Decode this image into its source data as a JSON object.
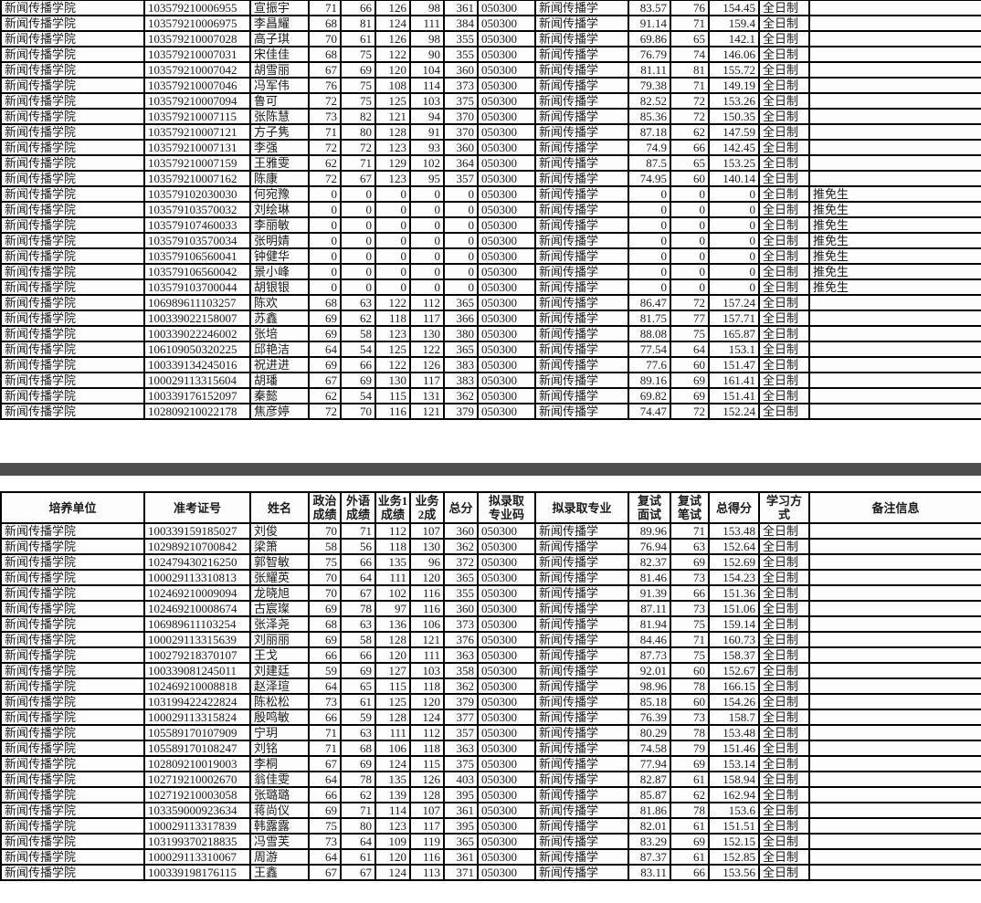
{
  "page": {
    "background_color": "#ffffff",
    "divider_color": "#4d4d4d",
    "table_border_color": "#000000"
  },
  "columns": [
    {
      "key": "unit",
      "label": "培养单位",
      "align": "left",
      "width": 157
    },
    {
      "key": "exam_no",
      "label": "准考证号",
      "align": "left",
      "width": 116
    },
    {
      "key": "name",
      "label": "姓名",
      "align": "left",
      "width": 64
    },
    {
      "key": "politics",
      "label": "政治\n成绩",
      "align": "right",
      "width": 35
    },
    {
      "key": "foreign_lang",
      "label": "外语\n成绩",
      "align": "right",
      "width": 38
    },
    {
      "key": "major1",
      "label": "业务1\n成绩",
      "align": "right",
      "width": 38
    },
    {
      "key": "major2",
      "label": "业务\n2成",
      "align": "right",
      "width": 37
    },
    {
      "key": "total",
      "label": "总分",
      "align": "right",
      "width": 37
    },
    {
      "key": "major_code",
      "label": "拟录取\n专业码",
      "align": "left",
      "width": 63
    },
    {
      "key": "major",
      "label": "拟录取专业",
      "align": "left",
      "width": 102
    },
    {
      "key": "interview",
      "label": "复试\n面试",
      "align": "right",
      "width": 46
    },
    {
      "key": "written",
      "label": "复试\n笔试",
      "align": "right",
      "width": 42
    },
    {
      "key": "final",
      "label": "总得分",
      "align": "right",
      "width": 55
    },
    {
      "key": "study_mode",
      "label": "学习方式",
      "align": "left",
      "width": 55
    },
    {
      "key": "remark",
      "label": "备注信息",
      "align": "left",
      "width": 189
    }
  ],
  "table_top": {
    "rows": [
      [
        "新闻传播学院",
        "103579210006955",
        "宣振宇",
        "71",
        "66",
        "126",
        "98",
        "361",
        "050300",
        "新闻传播学",
        "83.57",
        "76",
        "154.45",
        "全日制",
        ""
      ],
      [
        "新闻传播学院",
        "103579210006975",
        "李昌耀",
        "68",
        "81",
        "124",
        "111",
        "384",
        "050300",
        "新闻传播学",
        "91.14",
        "71",
        "159.4",
        "全日制",
        ""
      ],
      [
        "新闻传播学院",
        "103579210007028",
        "高子琪",
        "70",
        "61",
        "126",
        "98",
        "355",
        "050300",
        "新闻传播学",
        "69.86",
        "65",
        "142.1",
        "全日制",
        ""
      ],
      [
        "新闻传播学院",
        "103579210007031",
        "宋佳佳",
        "68",
        "75",
        "122",
        "90",
        "355",
        "050300",
        "新闻传播学",
        "76.79",
        "74",
        "146.06",
        "全日制",
        ""
      ],
      [
        "新闻传播学院",
        "103579210007042",
        "胡雪丽",
        "67",
        "69",
        "120",
        "104",
        "360",
        "050300",
        "新闻传播学",
        "81.11",
        "81",
        "155.72",
        "全日制",
        ""
      ],
      [
        "新闻传播学院",
        "103579210007046",
        "冯军伟",
        "76",
        "75",
        "108",
        "114",
        "373",
        "050300",
        "新闻传播学",
        "79.38",
        "71",
        "149.19",
        "全日制",
        ""
      ],
      [
        "新闻传播学院",
        "103579210007094",
        "鲁可",
        "72",
        "75",
        "125",
        "103",
        "375",
        "050300",
        "新闻传播学",
        "82.52",
        "72",
        "153.26",
        "全日制",
        ""
      ],
      [
        "新闻传播学院",
        "103579210007115",
        "张陈慧",
        "73",
        "82",
        "121",
        "94",
        "370",
        "050300",
        "新闻传播学",
        "85.36",
        "72",
        "150.35",
        "全日制",
        ""
      ],
      [
        "新闻传播学院",
        "103579210007121",
        "方子隽",
        "71",
        "80",
        "128",
        "91",
        "370",
        "050300",
        "新闻传播学",
        "87.18",
        "62",
        "147.59",
        "全日制",
        ""
      ],
      [
        "新闻传播学院",
        "103579210007131",
        "李强",
        "72",
        "72",
        "123",
        "93",
        "360",
        "050300",
        "新闻传播学",
        "74.9",
        "66",
        "142.45",
        "全日制",
        ""
      ],
      [
        "新闻传播学院",
        "103579210007159",
        "王雅雯",
        "62",
        "71",
        "129",
        "102",
        "364",
        "050300",
        "新闻传播学",
        "87.5",
        "65",
        "153.25",
        "全日制",
        ""
      ],
      [
        "新闻传播学院",
        "103579210007162",
        "陈康",
        "72",
        "67",
        "123",
        "95",
        "357",
        "050300",
        "新闻传播学",
        "74.95",
        "60",
        "140.14",
        "全日制",
        ""
      ],
      [
        "新闻传播学院",
        "103579102030030",
        "何宛豫",
        "0",
        "0",
        "0",
        "0",
        "0",
        "050300",
        "新闻传播学",
        "0",
        "0",
        "0",
        "全日制",
        "推免生"
      ],
      [
        "新闻传播学院",
        "103579103570032",
        "刘绘琳",
        "0",
        "0",
        "0",
        "0",
        "0",
        "050300",
        "新闻传播学",
        "0",
        "0",
        "0",
        "全日制",
        "推免生"
      ],
      [
        "新闻传播学院",
        "103579107460033",
        "李丽敏",
        "0",
        "0",
        "0",
        "0",
        "0",
        "050300",
        "新闻传播学",
        "0",
        "0",
        "0",
        "全日制",
        "推免生"
      ],
      [
        "新闻传播学院",
        "103579103570034",
        "张明婧",
        "0",
        "0",
        "0",
        "0",
        "0",
        "050300",
        "新闻传播学",
        "0",
        "0",
        "0",
        "全日制",
        "推免生"
      ],
      [
        "新闻传播学院",
        "103579106560041",
        "钟健华",
        "0",
        "0",
        "0",
        "0",
        "0",
        "050300",
        "新闻传播学",
        "0",
        "0",
        "0",
        "全日制",
        "推免生"
      ],
      [
        "新闻传播学院",
        "103579106560042",
        "景小峰",
        "0",
        "0",
        "0",
        "0",
        "0",
        "050300",
        "新闻传播学",
        "0",
        "0",
        "0",
        "全日制",
        "推免生"
      ],
      [
        "新闻传播学院",
        "103579103700044",
        "胡银银",
        "0",
        "0",
        "0",
        "0",
        "0",
        "050300",
        "新闻传播学",
        "0",
        "0",
        "0",
        "全日制",
        "推免生"
      ],
      [
        "新闻传播学院",
        "106989611103257",
        "陈欢",
        "68",
        "63",
        "122",
        "112",
        "365",
        "050300",
        "新闻传播学",
        "86.47",
        "72",
        "157.24",
        "全日制",
        ""
      ],
      [
        "新闻传播学院",
        "100339022158007",
        "苏鑫",
        "69",
        "62",
        "118",
        "117",
        "366",
        "050300",
        "新闻传播学",
        "81.75",
        "77",
        "157.71",
        "全日制",
        ""
      ],
      [
        "新闻传播学院",
        "100339022246002",
        "张培",
        "69",
        "58",
        "123",
        "130",
        "380",
        "050300",
        "新闻传播学",
        "88.08",
        "75",
        "165.87",
        "全日制",
        ""
      ],
      [
        "新闻传播学院",
        "106109050320225",
        "邱艳洁",
        "64",
        "54",
        "125",
        "122",
        "365",
        "050300",
        "新闻传播学",
        "77.54",
        "64",
        "153.1",
        "全日制",
        ""
      ],
      [
        "新闻传播学院",
        "100339134245016",
        "祝进进",
        "69",
        "66",
        "122",
        "126",
        "383",
        "050300",
        "新闻传播学",
        "77.6",
        "60",
        "151.47",
        "全日制",
        ""
      ],
      [
        "新闻传播学院",
        "100029113315604",
        "胡璠",
        "67",
        "69",
        "130",
        "117",
        "383",
        "050300",
        "新闻传播学",
        "89.16",
        "69",
        "161.41",
        "全日制",
        ""
      ],
      [
        "新闻传播学院",
        "100339176152097",
        "秦懿",
        "62",
        "54",
        "115",
        "131",
        "362",
        "050300",
        "新闻传播学",
        "69.82",
        "69",
        "151.41",
        "全日制",
        ""
      ],
      [
        "新闻传播学院",
        "102809210022178",
        "焦彦婷",
        "72",
        "70",
        "116",
        "121",
        "379",
        "050300",
        "新闻传播学",
        "74.47",
        "72",
        "152.24",
        "全日制",
        ""
      ]
    ]
  },
  "table_bottom": {
    "rows": [
      [
        "新闻传播学院",
        "100339159185027",
        "刘俊",
        "70",
        "71",
        "112",
        "107",
        "360",
        "050300",
        "新闻传播学",
        "89.96",
        "71",
        "153.48",
        "全日制",
        ""
      ],
      [
        "新闻传播学院",
        "102989210700842",
        "梁箫",
        "58",
        "56",
        "118",
        "130",
        "362",
        "050300",
        "新闻传播学",
        "76.94",
        "63",
        "152.64",
        "全日制",
        ""
      ],
      [
        "新闻传播学院",
        "102479430216250",
        "郭智敏",
        "75",
        "66",
        "135",
        "96",
        "372",
        "050300",
        "新闻传播学",
        "82.37",
        "69",
        "152.69",
        "全日制",
        ""
      ],
      [
        "新闻传播学院",
        "100029113310813",
        "张耀英",
        "70",
        "64",
        "111",
        "120",
        "365",
        "050300",
        "新闻传播学",
        "81.46",
        "73",
        "154.23",
        "全日制",
        ""
      ],
      [
        "新闻传播学院",
        "102469210009094",
        "龙晓旭",
        "70",
        "67",
        "102",
        "116",
        "355",
        "050300",
        "新闻传播学",
        "91.39",
        "66",
        "151.36",
        "全日制",
        ""
      ],
      [
        "新闻传播学院",
        "102469210008674",
        "古宸璨",
        "69",
        "78",
        "97",
        "116",
        "360",
        "050300",
        "新闻传播学",
        "87.11",
        "73",
        "151.06",
        "全日制",
        ""
      ],
      [
        "新闻传播学院",
        "106989611103254",
        "张泽尧",
        "68",
        "63",
        "136",
        "106",
        "373",
        "050300",
        "新闻传播学",
        "81.94",
        "75",
        "159.14",
        "全日制",
        ""
      ],
      [
        "新闻传播学院",
        "100029113315639",
        "刘丽丽",
        "69",
        "58",
        "128",
        "121",
        "376",
        "050300",
        "新闻传播学",
        "84.46",
        "71",
        "160.73",
        "全日制",
        ""
      ],
      [
        "新闻传播学院",
        "100279218370107",
        "王戈",
        "66",
        "66",
        "120",
        "111",
        "363",
        "050300",
        "新闻传播学",
        "87.73",
        "75",
        "158.37",
        "全日制",
        ""
      ],
      [
        "新闻传播学院",
        "100339081245011",
        "刘建廷",
        "59",
        "69",
        "127",
        "103",
        "358",
        "050300",
        "新闻传播学",
        "92.01",
        "60",
        "152.67",
        "全日制",
        ""
      ],
      [
        "新闻传播学院",
        "102469210008818",
        "赵泽瑄",
        "64",
        "65",
        "115",
        "118",
        "362",
        "050300",
        "新闻传播学",
        "98.96",
        "78",
        "166.15",
        "全日制",
        ""
      ],
      [
        "新闻传播学院",
        "103199422422824",
        "陈松松",
        "73",
        "61",
        "125",
        "120",
        "379",
        "050300",
        "新闻传播学",
        "85.18",
        "60",
        "154.26",
        "全日制",
        ""
      ],
      [
        "新闻传播学院",
        "100029113315824",
        "殷鸣敏",
        "66",
        "59",
        "128",
        "124",
        "377",
        "050300",
        "新闻传播学",
        "76.39",
        "73",
        "158.7",
        "全日制",
        ""
      ],
      [
        "新闻传播学院",
        "105589170107909",
        "宁玥",
        "71",
        "63",
        "111",
        "112",
        "357",
        "050300",
        "新闻传播学",
        "80.29",
        "78",
        "153.48",
        "全日制",
        ""
      ],
      [
        "新闻传播学院",
        "105589170108247",
        "刘铭",
        "71",
        "68",
        "106",
        "118",
        "363",
        "050300",
        "新闻传播学",
        "74.58",
        "79",
        "151.46",
        "全日制",
        ""
      ],
      [
        "新闻传播学院",
        "102809210019003",
        "李桐",
        "67",
        "69",
        "124",
        "115",
        "375",
        "050300",
        "新闻传播学",
        "77.94",
        "69",
        "153.14",
        "全日制",
        ""
      ],
      [
        "新闻传播学院",
        "102719210002670",
        "翁佳雯",
        "64",
        "78",
        "135",
        "126",
        "403",
        "050300",
        "新闻传播学",
        "82.87",
        "61",
        "158.94",
        "全日制",
        ""
      ],
      [
        "新闻传播学院",
        "102719210003058",
        "张璐璐",
        "66",
        "62",
        "139",
        "128",
        "395",
        "050300",
        "新闻传播学",
        "85.87",
        "62",
        "162.94",
        "全日制",
        ""
      ],
      [
        "新闻传播学院",
        "103359000923634",
        "蒋尚仪",
        "69",
        "71",
        "114",
        "107",
        "361",
        "050300",
        "新闻传播学",
        "81.86",
        "78",
        "153.6",
        "全日制",
        ""
      ],
      [
        "新闻传播学院",
        "100029113317839",
        "韩露露",
        "75",
        "80",
        "123",
        "117",
        "395",
        "050300",
        "新闻传播学",
        "82.01",
        "61",
        "151.51",
        "全日制",
        ""
      ],
      [
        "新闻传播学院",
        "103199370218835",
        "冯雪芙",
        "73",
        "64",
        "109",
        "119",
        "365",
        "050300",
        "新闻传播学",
        "83.29",
        "69",
        "152.15",
        "全日制",
        ""
      ],
      [
        "新闻传播学院",
        "100029113310067",
        "周游",
        "64",
        "61",
        "120",
        "116",
        "361",
        "050300",
        "新闻传播学",
        "87.37",
        "61",
        "152.85",
        "全日制",
        ""
      ],
      [
        "新闻传播学院",
        "100339198176115",
        "王鑫",
        "67",
        "67",
        "124",
        "113",
        "371",
        "050300",
        "新闻传播学",
        "83.11",
        "66",
        "153.56",
        "全日制",
        ""
      ]
    ]
  }
}
